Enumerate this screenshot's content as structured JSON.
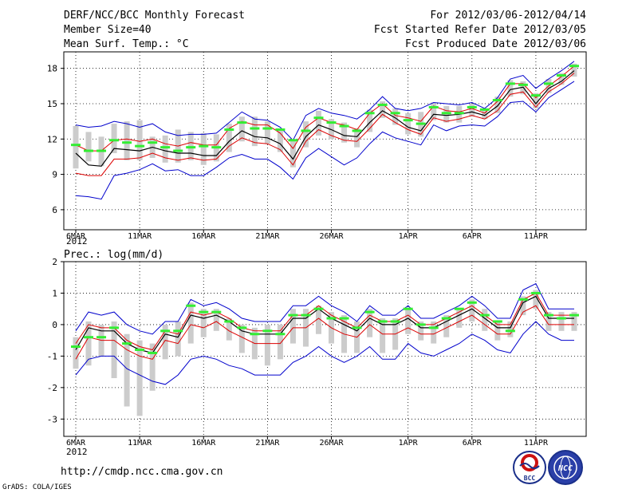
{
  "header": {
    "title": "DERF/NCC/BCC Monthly Forecast",
    "member_size": "Member Size=40",
    "forecast_window": "For 2012/03/06-2012/04/14",
    "started_refer_date": "Fcst Started Refer Date 2012/03/05",
    "produced_date": "Fcst Produced Date 2012/03/06"
  },
  "footer": {
    "url": "http://cmdp.ncc.cma.gov.cn",
    "credit": "GrADS: COLA/IGES",
    "logo_bcc_text": "BCC",
    "logo_ncc_text": "NCC"
  },
  "colors": {
    "envelope": "#0000cc",
    "quartile": "#dd0000",
    "mean": "#000000",
    "median": "#33ee33",
    "boxes": "#cccccc",
    "grid": "#000000"
  },
  "chart_data": [
    {
      "type": "box",
      "title": "Mean Surf. Temp.: °C",
      "xlabel": "",
      "ylabel": "",
      "ylim": [
        4.3,
        19.4
      ],
      "yticks": [
        6,
        9,
        12,
        15,
        18
      ],
      "x_tick_labels": [
        "6MAR",
        "11MAR",
        "16MAR",
        "21MAR",
        "26MAR",
        "1APR",
        "6APR",
        "11APR"
      ],
      "x_tick_days": [
        1,
        6,
        11,
        16,
        21,
        27,
        32,
        37
      ],
      "year_label": "2012",
      "days": [
        1,
        2,
        3,
        4,
        5,
        6,
        7,
        8,
        9,
        10,
        11,
        12,
        13,
        14,
        15,
        16,
        17,
        18,
        19,
        20,
        21,
        22,
        23,
        24,
        25,
        26,
        27,
        28,
        29,
        30,
        31,
        32,
        33,
        34,
        35,
        36,
        37,
        38,
        39,
        40
      ],
      "series": [
        {
          "name": "max",
          "values": [
            13.2,
            13.0,
            13.1,
            13.5,
            13.3,
            13.0,
            13.3,
            12.6,
            12.3,
            12.4,
            12.4,
            12.5,
            13.4,
            14.3,
            13.7,
            13.6,
            13.0,
            11.9,
            14.0,
            14.6,
            14.2,
            14.0,
            13.7,
            14.5,
            15.6,
            14.6,
            14.4,
            14.6,
            15.1,
            15.0,
            14.9,
            15.1,
            14.6,
            15.5,
            17.1,
            17.4,
            16.3,
            17.1,
            17.8,
            18.6
          ]
        },
        {
          "name": "q3",
          "values": [
            11.5,
            11.0,
            11.0,
            11.9,
            12.0,
            11.8,
            12.0,
            11.6,
            11.4,
            11.7,
            11.5,
            11.5,
            12.9,
            13.5,
            13.2,
            13.2,
            12.5,
            11.2,
            13.0,
            13.8,
            13.4,
            13.2,
            12.8,
            14.2,
            15.0,
            14.0,
            13.8,
            13.5,
            14.8,
            14.4,
            14.3,
            14.6,
            14.2,
            15.2,
            16.7,
            16.7,
            15.5,
            16.5,
            17.3,
            18.2
          ]
        },
        {
          "name": "mean",
          "values": [
            10.8,
            9.8,
            9.7,
            11.2,
            11.1,
            11.0,
            11.3,
            11.0,
            10.8,
            10.8,
            10.6,
            10.6,
            11.8,
            12.7,
            12.2,
            12.1,
            11.6,
            10.3,
            12.2,
            13.2,
            12.8,
            12.3,
            12.2,
            13.4,
            14.4,
            13.8,
            13.0,
            12.7,
            14.1,
            14.0,
            14.1,
            14.3,
            14.0,
            14.8,
            16.2,
            16.4,
            15.0,
            16.3,
            16.9,
            17.8
          ]
        },
        {
          "name": "q1",
          "values": [
            9.1,
            8.9,
            8.9,
            10.3,
            10.3,
            10.4,
            10.8,
            10.4,
            10.2,
            10.4,
            10.2,
            10.3,
            11.4,
            12.1,
            11.7,
            11.6,
            11.1,
            9.8,
            11.8,
            12.8,
            12.3,
            11.9,
            11.8,
            12.9,
            14.1,
            13.4,
            12.8,
            12.4,
            13.8,
            13.5,
            13.7,
            14.0,
            13.7,
            14.4,
            15.8,
            16.0,
            14.7,
            16.0,
            16.7,
            17.6
          ]
        },
        {
          "name": "min",
          "values": [
            7.2,
            7.1,
            6.9,
            8.9,
            9.1,
            9.4,
            9.9,
            9.3,
            9.4,
            8.9,
            8.9,
            9.6,
            10.4,
            10.7,
            10.3,
            10.3,
            9.6,
            8.6,
            10.4,
            11.2,
            10.5,
            9.8,
            10.4,
            11.6,
            12.6,
            12.1,
            11.8,
            11.5,
            13.2,
            12.7,
            13.1,
            13.2,
            13.1,
            13.9,
            15.1,
            15.2,
            14.3,
            15.5,
            16.2,
            16.9
          ]
        },
        {
          "name": "median",
          "values": [
            11.5,
            11.0,
            11.0,
            11.9,
            11.7,
            11.4,
            11.7,
            11.3,
            11.0,
            11.3,
            11.4,
            11.3,
            12.8,
            13.4,
            12.9,
            12.9,
            12.8,
            11.9,
            12.7,
            13.8,
            13.4,
            13.1,
            12.7,
            14.2,
            14.9,
            14.2,
            13.6,
            13.3,
            14.7,
            14.2,
            14.2,
            14.7,
            14.5,
            15.3,
            16.7,
            16.6,
            15.7,
            16.7,
            17.4,
            18.2
          ]
        },
        {
          "name": "box_top",
          "values": [
            13.1,
            12.6,
            12.2,
            13.3,
            13.5,
            13.6,
            12.2,
            12.3,
            12.8,
            12.6,
            12.5,
            12.4,
            13.3,
            13.9,
            13.9,
            13.5,
            12.7,
            11.9,
            13.5,
            14.4,
            13.7,
            13.4,
            12.9,
            14.5,
            15.2,
            14.6,
            14.2,
            14.3,
            15.1,
            14.8,
            14.8,
            15.0,
            14.6,
            15.6,
            17.0,
            16.9,
            15.9,
            17.1,
            17.6,
            18.4
          ]
        },
        {
          "name": "box_bottom",
          "values": [
            9.5,
            10.1,
            9.7,
            10.8,
            10.2,
            10.2,
            10.4,
            10.0,
            10.0,
            10.2,
            9.8,
            10.1,
            10.9,
            11.8,
            11.4,
            11.6,
            10.9,
            9.6,
            11.3,
            12.3,
            12.0,
            11.7,
            11.3,
            12.6,
            13.8,
            13.2,
            12.4,
            12.2,
            13.6,
            13.4,
            13.4,
            13.9,
            13.7,
            14.2,
            15.6,
            15.8,
            14.6,
            15.9,
            16.6,
            17.3
          ]
        }
      ]
    },
    {
      "type": "box",
      "title": "Prec.: log(mm/d)",
      "xlabel": "",
      "ylabel": "",
      "ylim": [
        -3.55,
        2.0
      ],
      "yticks": [
        -3,
        -2,
        -1,
        0,
        1,
        2
      ],
      "x_tick_labels": [
        "6MAR",
        "11MAR",
        "16MAR",
        "21MAR",
        "26MAR",
        "1APR",
        "6APR",
        "11APR"
      ],
      "x_tick_days": [
        1,
        6,
        11,
        16,
        21,
        27,
        32,
        37
      ],
      "year_label": "2012",
      "days": [
        1,
        2,
        3,
        4,
        5,
        6,
        7,
        8,
        9,
        10,
        11,
        12,
        13,
        14,
        15,
        16,
        17,
        18,
        19,
        20,
        21,
        22,
        23,
        24,
        25,
        26,
        27,
        28,
        29,
        30,
        31,
        32,
        33,
        34,
        35,
        36,
        37,
        38,
        39,
        40
      ],
      "series": [
        {
          "name": "max",
          "values": [
            -0.2,
            0.4,
            0.3,
            0.4,
            0.0,
            -0.2,
            -0.3,
            0.1,
            0.1,
            0.8,
            0.6,
            0.7,
            0.5,
            0.2,
            0.1,
            0.1,
            0.1,
            0.6,
            0.6,
            0.9,
            0.6,
            0.4,
            0.1,
            0.6,
            0.3,
            0.3,
            0.6,
            0.2,
            0.2,
            0.4,
            0.6,
            0.9,
            0.6,
            0.2,
            0.2,
            1.1,
            1.3,
            0.5,
            0.5,
            0.5
          ]
        },
        {
          "name": "q3",
          "values": [
            -0.6,
            0.0,
            -0.1,
            -0.1,
            -0.5,
            -0.7,
            -0.8,
            -0.2,
            -0.3,
            0.4,
            0.3,
            0.4,
            0.2,
            -0.1,
            -0.2,
            -0.2,
            -0.2,
            0.3,
            0.3,
            0.6,
            0.3,
            0.1,
            -0.1,
            0.3,
            0.1,
            0.1,
            0.3,
            0.0,
            0.0,
            0.2,
            0.4,
            0.6,
            0.3,
            0.0,
            0.0,
            0.8,
            1.0,
            0.3,
            0.3,
            0.3
          ]
        },
        {
          "name": "mean",
          "values": [
            -0.8,
            -0.1,
            -0.2,
            -0.2,
            -0.6,
            -0.8,
            -0.9,
            -0.3,
            -0.4,
            0.3,
            0.2,
            0.3,
            0.1,
            -0.2,
            -0.3,
            -0.3,
            -0.3,
            0.2,
            0.2,
            0.5,
            0.2,
            0.0,
            -0.2,
            0.2,
            0.0,
            0.0,
            0.2,
            -0.1,
            -0.1,
            0.1,
            0.3,
            0.5,
            0.2,
            -0.1,
            -0.1,
            0.7,
            0.9,
            0.2,
            0.2,
            0.2
          ]
        },
        {
          "name": "q1",
          "values": [
            -1.1,
            -0.4,
            -0.5,
            -0.5,
            -0.8,
            -1.0,
            -1.1,
            -0.5,
            -0.6,
            0.0,
            -0.1,
            0.1,
            -0.2,
            -0.4,
            -0.6,
            -0.6,
            -0.6,
            -0.1,
            -0.1,
            0.2,
            -0.1,
            -0.3,
            -0.4,
            0.0,
            -0.3,
            -0.3,
            -0.1,
            -0.3,
            -0.3,
            -0.1,
            0.1,
            0.3,
            0.0,
            -0.3,
            -0.3,
            0.4,
            0.6,
            0.0,
            0.0,
            0.0
          ]
        },
        {
          "name": "min",
          "values": [
            -1.6,
            -1.1,
            -1.0,
            -1.0,
            -1.4,
            -1.6,
            -1.8,
            -1.9,
            -1.6,
            -1.1,
            -1.0,
            -1.1,
            -1.3,
            -1.4,
            -1.6,
            -1.6,
            -1.6,
            -1.2,
            -1.0,
            -0.7,
            -1.0,
            -1.2,
            -1.0,
            -0.7,
            -1.1,
            -1.1,
            -0.6,
            -0.9,
            -1.0,
            -0.8,
            -0.6,
            -0.3,
            -0.5,
            -0.8,
            -0.9,
            -0.3,
            0.1,
            -0.3,
            -0.5,
            -0.5
          ]
        },
        {
          "name": "median",
          "values": [
            -0.7,
            -0.4,
            -0.4,
            -0.1,
            -0.6,
            -0.8,
            -0.9,
            -0.2,
            -0.2,
            0.6,
            0.4,
            0.4,
            0.1,
            -0.1,
            -0.3,
            -0.2,
            -0.3,
            0.3,
            0.3,
            0.5,
            0.2,
            0.2,
            -0.1,
            0.4,
            0.1,
            0.1,
            0.5,
            0.0,
            -0.1,
            0.2,
            0.5,
            0.7,
            0.3,
            0.1,
            -0.2,
            0.8,
            1.0,
            0.3,
            0.2,
            0.3
          ]
        },
        {
          "name": "box_top",
          "values": [
            -0.4,
            0.1,
            0.0,
            0.1,
            -0.3,
            -0.5,
            -0.6,
            0.0,
            0.1,
            0.7,
            0.5,
            0.5,
            0.2,
            0.0,
            -0.1,
            0.0,
            0.0,
            0.5,
            0.5,
            0.6,
            0.4,
            0.3,
            0.1,
            0.5,
            0.2,
            0.2,
            0.5,
            0.1,
            0.1,
            0.3,
            0.5,
            0.8,
            0.5,
            0.1,
            0.1,
            0.9,
            1.1,
            0.4,
            0.4,
            0.4
          ]
        },
        {
          "name": "box_bottom",
          "values": [
            -1.4,
            -1.3,
            -1.0,
            -1.7,
            -2.6,
            -2.9,
            -2.1,
            -1.1,
            -1.0,
            -0.6,
            -0.4,
            -0.2,
            -0.5,
            -0.9,
            -1.1,
            -1.3,
            -1.1,
            -0.6,
            -0.7,
            -0.3,
            -0.6,
            -0.9,
            -0.9,
            -0.4,
            -0.9,
            -0.8,
            -0.3,
            -0.5,
            -0.6,
            -0.4,
            -0.1,
            0.1,
            -0.2,
            -0.5,
            -0.4,
            0.3,
            0.5,
            -0.2,
            -0.2,
            -0.2
          ]
        }
      ]
    }
  ]
}
